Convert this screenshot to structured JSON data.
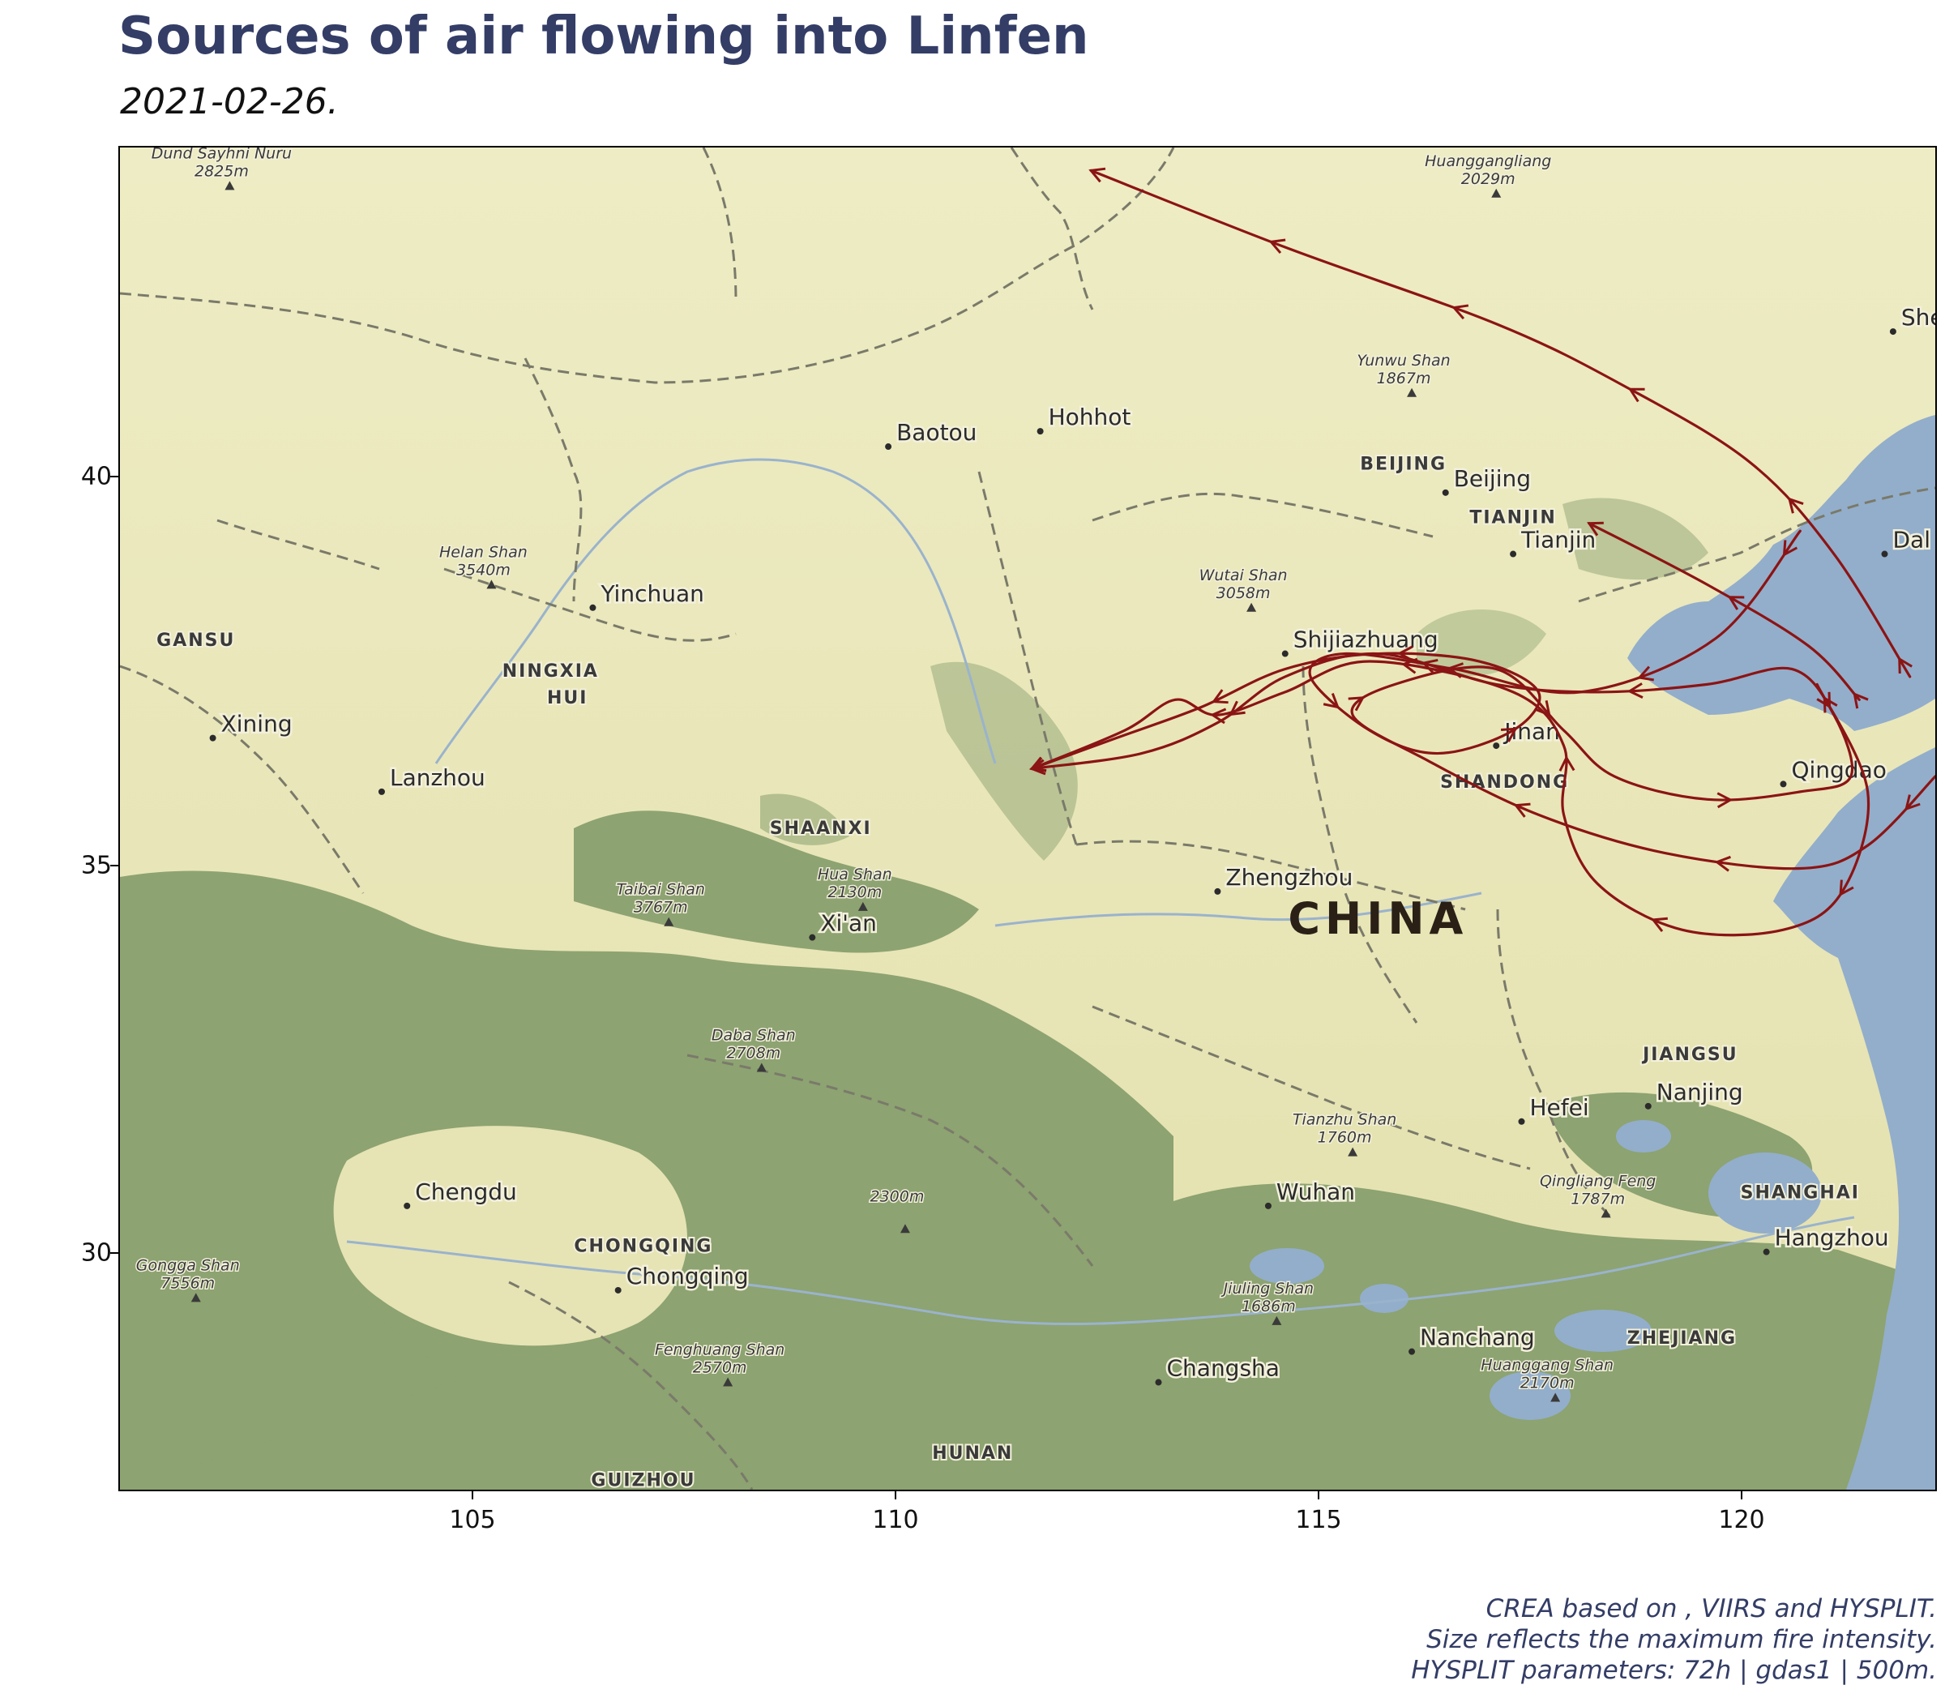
{
  "header": {
    "title": "Sources of air flowing into Linfen",
    "subtitle": "2021-02-26."
  },
  "axes": {
    "x_ticks": [
      "105",
      "110",
      "115",
      "120"
    ],
    "y_ticks": [
      "40",
      "35",
      "30"
    ]
  },
  "map": {
    "country_label": "CHINA",
    "cities": [
      {
        "name": "Baotou",
        "lon": 109.8,
        "lat": 40.3
      },
      {
        "name": "Hohhot",
        "lon": 111.6,
        "lat": 40.5
      },
      {
        "name": "Beijing",
        "lon": 116.4,
        "lat": 39.7
      },
      {
        "name": "Tianjin",
        "lon": 117.2,
        "lat": 38.9
      },
      {
        "name": "Shijiazhuang",
        "lon": 114.5,
        "lat": 37.6
      },
      {
        "name": "Yinchuan",
        "lon": 106.3,
        "lat": 38.2
      },
      {
        "name": "Xining",
        "lon": 101.8,
        "lat": 36.5
      },
      {
        "name": "Lanzhou",
        "lon": 103.8,
        "lat": 35.8
      },
      {
        "name": "Jinan",
        "lon": 117.0,
        "lat": 36.4
      },
      {
        "name": "Qingdao",
        "lon": 120.4,
        "lat": 35.9
      },
      {
        "name": "Zhengzhou",
        "lon": 113.7,
        "lat": 34.5
      },
      {
        "name": "Xi'an",
        "lon": 108.9,
        "lat": 33.9
      },
      {
        "name": "Nanjing",
        "lon": 118.8,
        "lat": 31.7
      },
      {
        "name": "Hefei",
        "lon": 117.3,
        "lat": 31.5
      },
      {
        "name": "Chengdu",
        "lon": 104.1,
        "lat": 30.4
      },
      {
        "name": "Wuhan",
        "lon": 114.3,
        "lat": 30.4
      },
      {
        "name": "Hangzhou",
        "lon": 120.2,
        "lat": 29.8
      },
      {
        "name": "Chongqing",
        "lon": 106.6,
        "lat": 29.3
      },
      {
        "name": "Nanchang",
        "lon": 116.0,
        "lat": 28.5
      },
      {
        "name": "Changsha",
        "lon": 113.0,
        "lat": 28.1
      },
      {
        "name": "Dal",
        "lon": 121.6,
        "lat": 38.9
      },
      {
        "name": "She",
        "lon": 121.7,
        "lat": 41.8
      }
    ],
    "regions": [
      {
        "name": "BEIJING",
        "lon": 115.9,
        "lat": 40.0
      },
      {
        "name": "TIANJIN",
        "lon": 117.2,
        "lat": 39.3
      },
      {
        "name": "GANSU",
        "lon": 101.6,
        "lat": 37.7
      },
      {
        "name": "NINGXIA",
        "lon": 105.8,
        "lat": 37.3
      },
      {
        "name": "HUI",
        "lon": 106.0,
        "lat": 36.95
      },
      {
        "name": "SHAANXI",
        "lon": 109.0,
        "lat": 35.25
      },
      {
        "name": "SHANDONG",
        "lon": 117.1,
        "lat": 35.85
      },
      {
        "name": "JIANGSU",
        "lon": 119.3,
        "lat": 32.3
      },
      {
        "name": "SHANGHAI",
        "lon": 120.6,
        "lat": 30.5
      },
      {
        "name": "CHONGQING",
        "lon": 106.9,
        "lat": 29.8
      },
      {
        "name": "ZHEJIANG",
        "lon": 119.2,
        "lat": 28.6
      },
      {
        "name": "HUNAN",
        "lon": 110.8,
        "lat": 27.1
      },
      {
        "name": "GUIZHOU",
        "lon": 106.9,
        "lat": 26.75
      }
    ],
    "peaks": [
      {
        "name": "Dund Sayhni Nuru",
        "elev": "2825m",
        "lon": 102.0,
        "lat": 43.7
      },
      {
        "name": "Huanggangliang",
        "elev": "2029m",
        "lon": 117.0,
        "lat": 43.6
      },
      {
        "name": "Yunwu Shan",
        "elev": "1867m",
        "lon": 116.0,
        "lat": 41.0
      },
      {
        "name": "Helan Shan",
        "elev": "3540m",
        "lon": 105.1,
        "lat": 38.5
      },
      {
        "name": "Wutai Shan",
        "elev": "3058m",
        "lon": 114.1,
        "lat": 38.2
      },
      {
        "name": "Hua Shan",
        "elev": "2130m",
        "lon": 109.5,
        "lat": 34.3
      },
      {
        "name": "Taibai Shan",
        "elev": "3767m",
        "lon": 107.2,
        "lat": 34.1
      },
      {
        "name": "Daba Shan",
        "elev": "2708m",
        "lon": 108.3,
        "lat": 32.2
      },
      {
        "name": "Tianzhu Shan",
        "elev": "1760m",
        "lon": 115.3,
        "lat": 31.1
      },
      {
        "name": "Qingliang Feng",
        "elev": "1787m",
        "lon": 118.3,
        "lat": 30.3
      },
      {
        "name": "2300m",
        "elev": "",
        "lon": 110.0,
        "lat": 30.1
      },
      {
        "name": "Gongga Shan",
        "elev": "7556m",
        "lon": 101.6,
        "lat": 29.2
      },
      {
        "name": "Jiuling Shan",
        "elev": "1686m",
        "lon": 114.4,
        "lat": 28.9
      },
      {
        "name": "Fenghuang Shan",
        "elev": "2570m",
        "lon": 107.9,
        "lat": 28.1
      },
      {
        "name": "Huanggang Shan",
        "elev": "2170m",
        "lon": 117.7,
        "lat": 27.9
      }
    ],
    "colors": {
      "trajectory": "#8b1414",
      "water": "#93aecb",
      "land": "#e9e6b8",
      "mountain": "#6f8a58"
    }
  },
  "trajectories": [
    {
      "points": [
        [
          112.2,
          43.9
        ],
        [
          114.5,
          42.9
        ],
        [
          117,
          41.9
        ],
        [
          118.5,
          41.1
        ],
        [
          120,
          40.1
        ],
        [
          121,
          38.9
        ],
        [
          121.9,
          37.3
        ]
      ]
    },
    {
      "points": [
        [
          118.1,
          39.3
        ],
        [
          119.5,
          38.5
        ],
        [
          120.7,
          37.7
        ],
        [
          121.3,
          37.0
        ]
      ]
    },
    {
      "points": [
        [
          111.5,
          36.1
        ],
        [
          112.5,
          36.5
        ],
        [
          113.5,
          36.9
        ],
        [
          114.5,
          37.4
        ],
        [
          115.6,
          37.6
        ],
        [
          116.8,
          37.5
        ],
        [
          117.5,
          37.1
        ],
        [
          117.2,
          36.6
        ],
        [
          116.3,
          36.3
        ],
        [
          115.5,
          36.6
        ],
        [
          114.8,
          37.3
        ],
        [
          115.2,
          37.6
        ],
        [
          116.5,
          37.4
        ],
        [
          118,
          37.1
        ],
        [
          119.6,
          37.8
        ],
        [
          120.6,
          39.2
        ]
      ]
    },
    {
      "points": [
        [
          111.5,
          36.1
        ],
        [
          112.8,
          36.3
        ],
        [
          113.7,
          36.7
        ],
        [
          114.5,
          37.3
        ],
        [
          115.6,
          37.6
        ],
        [
          117,
          37.2
        ],
        [
          118.2,
          37.1
        ],
        [
          119.5,
          37.2
        ],
        [
          120.5,
          37.4
        ],
        [
          121.0,
          36.8
        ],
        [
          121.2,
          36.0
        ],
        [
          120.6,
          35.8
        ],
        [
          119.5,
          35.7
        ],
        [
          118.4,
          36.0
        ],
        [
          117.8,
          36.6
        ],
        [
          117.0,
          37.4
        ],
        [
          115.8,
          37.2
        ],
        [
          115.3,
          36.8
        ],
        [
          116.2,
          36.2
        ],
        [
          117.5,
          35.5
        ],
        [
          119.0,
          35.0
        ],
        [
          120.6,
          34.8
        ],
        [
          121.4,
          35.1
        ],
        [
          122.2,
          36.0
        ]
      ]
    },
    {
      "points": [
        [
          111.5,
          36.1
        ],
        [
          112.6,
          36.6
        ],
        [
          113.2,
          37.0
        ],
        [
          113.7,
          36.8
        ],
        [
          114.5,
          37.1
        ],
        [
          115.5,
          37.5
        ],
        [
          117.2,
          37.1
        ],
        [
          117.8,
          36.4
        ],
        [
          117.8,
          35.5
        ],
        [
          118.2,
          34.6
        ],
        [
          119.2,
          34.0
        ],
        [
          120.4,
          34.0
        ],
        [
          121.1,
          34.5
        ],
        [
          121.4,
          35.8
        ],
        [
          120.8,
          37.2
        ]
      ]
    }
  ],
  "caption": {
    "line1": "CREA based on , VIIRS and HYSPLIT.",
    "line2": "Size reflects the maximum fire intensity.",
    "line3": "HYSPLIT parameters: 72h | gdas1 | 500m."
  }
}
